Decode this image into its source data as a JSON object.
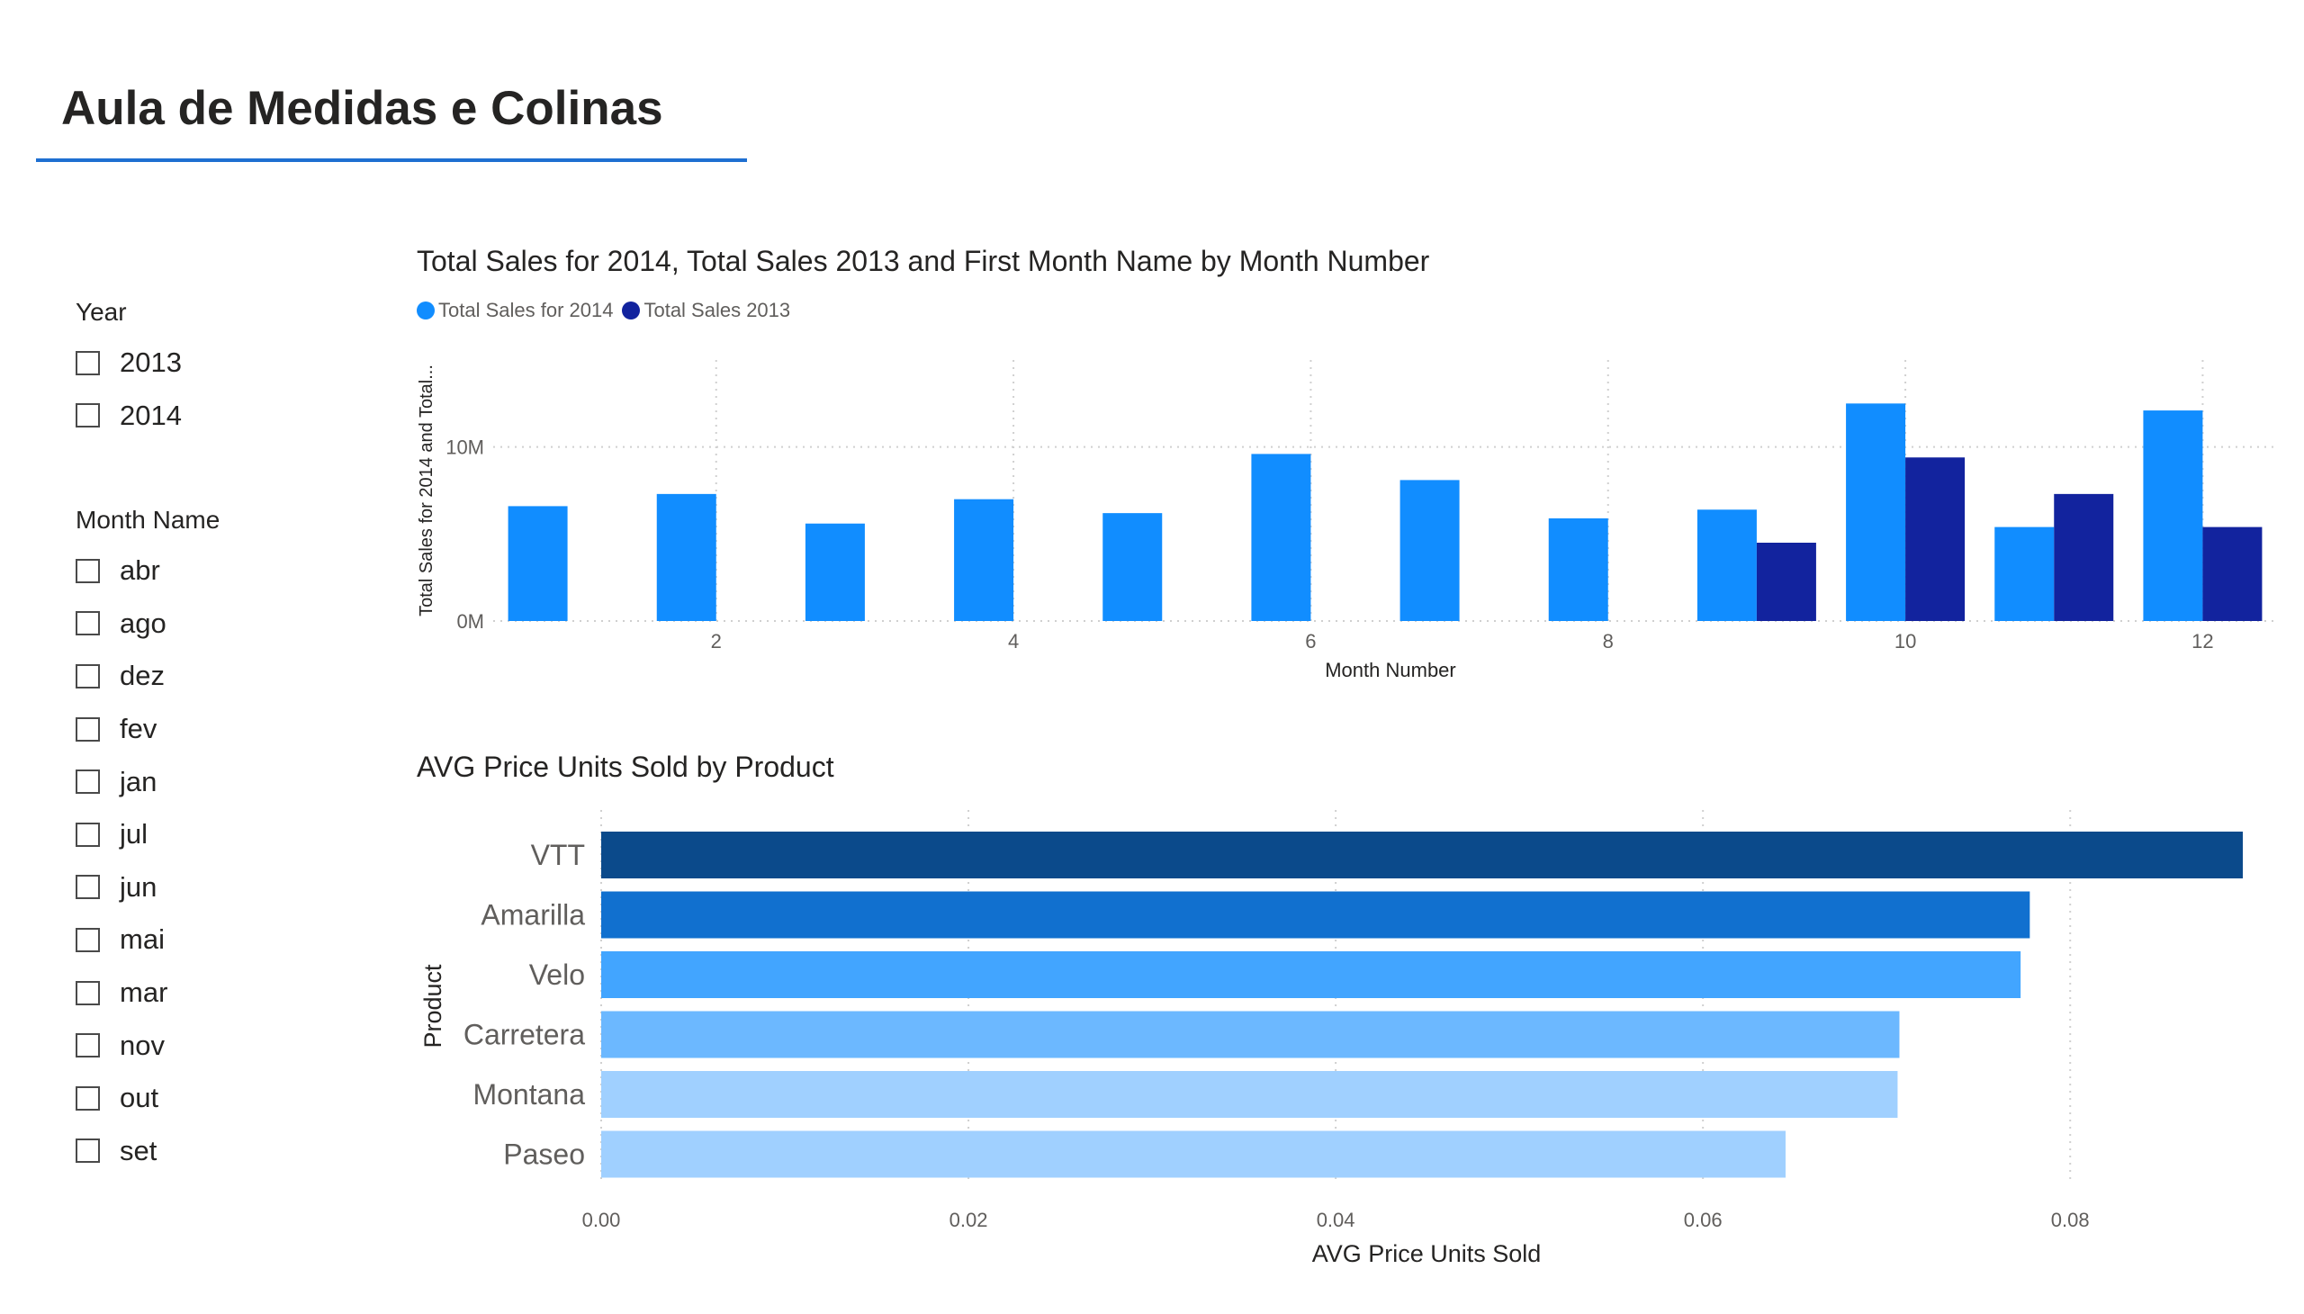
{
  "page": {
    "title": "Aula de Medidas e Colinas"
  },
  "slicers": {
    "year": {
      "title": "Year",
      "items": [
        "2013",
        "2014"
      ]
    },
    "month_name": {
      "title": "Month Name",
      "items": [
        "abr",
        "ago",
        "dez",
        "fev",
        "jan",
        "jul",
        "jun",
        "mai",
        "mar",
        "nov",
        "out",
        "set"
      ]
    }
  },
  "colors": {
    "series_2014": "#118dff",
    "series_2013": "#12239e",
    "gridline": "#d0d0d0",
    "axis_text": "#605e5c",
    "title_underline": "#1e6fd1"
  },
  "chart_data": [
    {
      "type": "bar",
      "title": "Total Sales for 2014, Total Sales 2013 and First Month Name by Month Number",
      "xlabel": "Month Number",
      "ylabel": "Total Sales for 2014 and Total...",
      "x": [
        1,
        2,
        3,
        4,
        5,
        6,
        7,
        8,
        9,
        10,
        11,
        12
      ],
      "x_ticks": [
        2,
        4,
        6,
        8,
        10,
        12
      ],
      "y_ticks": [
        {
          "value": 0,
          "label": "0M"
        },
        {
          "value": 10000000,
          "label": "10M"
        }
      ],
      "ylim": [
        0,
        15000000
      ],
      "legend": "top-left",
      "grid": true,
      "series": [
        {
          "name": "Total Sales for 2014",
          "color": "#118dff",
          "values": [
            6600000,
            7300000,
            5600000,
            7000000,
            6200000,
            9600000,
            8100000,
            5900000,
            6400000,
            12500000,
            5400000,
            12100000
          ]
        },
        {
          "name": "Total Sales 2013",
          "color": "#12239e",
          "values": [
            null,
            null,
            null,
            null,
            null,
            null,
            null,
            null,
            4500000,
            9400000,
            7300000,
            5400000
          ]
        }
      ]
    },
    {
      "type": "bar",
      "orientation": "horizontal",
      "title": "AVG Price Units Sold by Product",
      "xlabel": "AVG Price Units Sold",
      "ylabel": "Product",
      "categories": [
        "VTT",
        "Amarilla",
        "Velo",
        "Carretera",
        "Montana",
        "Paseo"
      ],
      "values": [
        0.0894,
        0.0778,
        0.0773,
        0.0707,
        0.0706,
        0.0645
      ],
      "colors": [
        "#0b4a8b",
        "#1170cf",
        "#42a5ff",
        "#6cb8ff",
        "#a0d0ff",
        "#a0d0ff"
      ],
      "x_ticks": [
        {
          "value": 0,
          "label": "0.00"
        },
        {
          "value": 0.02,
          "label": "0.02"
        },
        {
          "value": 0.04,
          "label": "0.04"
        },
        {
          "value": 0.06,
          "label": "0.06"
        },
        {
          "value": 0.08,
          "label": "0.08"
        }
      ],
      "xlim": [
        0,
        0.0894
      ],
      "grid": true
    }
  ]
}
